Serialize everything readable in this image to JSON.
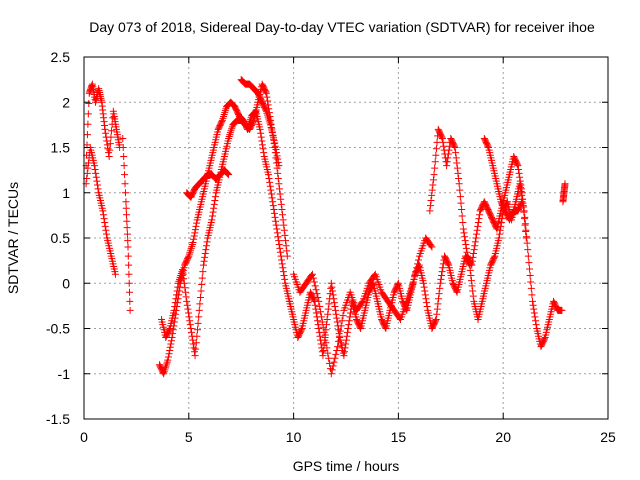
{
  "chart_data": {
    "type": "scatter",
    "title": "Day 073 of 2018, Sidereal Day-to-day VTEC variation (SDTVAR) for receiver ihoe",
    "xlabel": "GPS time / hours",
    "ylabel": "SDTVAR / TECUs",
    "xlim": [
      0,
      25
    ],
    "ylim": [
      -1.5,
      2.5
    ],
    "x_ticks": [
      "0",
      "5",
      "10",
      "15",
      "20",
      "25"
    ],
    "y_ticks": [
      "-1.5",
      "-1",
      "-0.5",
      "0",
      "0.5",
      "1",
      "1.5",
      "2",
      "2.5"
    ],
    "grid": true,
    "marker": "+",
    "marker_color": "#ff0000",
    "series": [
      {
        "name": "SDTVAR",
        "segments": [
          {
            "x": [
              0.1,
              0.25,
              0.4,
              0.55,
              0.7,
              0.85,
              1.0,
              1.2,
              1.4,
              1.55,
              1.7
            ],
            "y": [
              1.3,
              2.1,
              2.2,
              2.0,
              2.15,
              2.0,
              1.7,
              1.4,
              1.9,
              1.7,
              1.5
            ]
          },
          {
            "x": [
              0.1,
              0.3,
              0.5,
              0.7,
              0.9,
              1.1,
              1.3,
              1.5
            ],
            "y": [
              1.1,
              1.5,
              1.3,
              1.0,
              0.8,
              0.5,
              0.3,
              0.1
            ]
          },
          {
            "x": [
              1.85,
              2.0,
              2.1,
              2.2
            ],
            "y": [
              1.6,
              0.9,
              0.4,
              -0.3
            ]
          },
          {
            "x": [
              3.6,
              3.8,
              4.0,
              4.2,
              4.4,
              4.6,
              4.8,
              5.0,
              5.2,
              5.4,
              5.6,
              5.8,
              6.0,
              6.2,
              6.4,
              6.6,
              6.8,
              7.0,
              7.2,
              7.4,
              7.6,
              7.8,
              8.0,
              8.2,
              8.4,
              8.6,
              8.8,
              9.0,
              9.2,
              9.4,
              9.6,
              9.8
            ],
            "y": [
              -0.9,
              -1.0,
              -0.85,
              -0.6,
              -0.3,
              0.0,
              0.2,
              0.3,
              0.45,
              0.7,
              0.9,
              1.1,
              1.3,
              1.5,
              1.7,
              1.8,
              1.95,
              2.0,
              1.95,
              1.85,
              1.8,
              1.7,
              1.85,
              1.9,
              1.7,
              1.4,
              1.2,
              0.9,
              0.6,
              0.3,
              0.0,
              -0.2
            ]
          },
          {
            "x": [
              3.7,
              3.9,
              4.1,
              4.3,
              4.5,
              4.7,
              4.9,
              5.1,
              5.3,
              5.5,
              5.7,
              5.9,
              6.1,
              6.3,
              6.5,
              6.7,
              6.9,
              7.1,
              7.3,
              7.5,
              7.7,
              7.9,
              8.1,
              8.3,
              8.5,
              8.7,
              8.9,
              9.1,
              9.3,
              9.5,
              9.7
            ],
            "y": [
              -0.4,
              -0.6,
              -0.5,
              -0.3,
              0.0,
              0.15,
              -0.2,
              -0.5,
              -0.8,
              -0.3,
              0.2,
              0.5,
              0.7,
              1.0,
              1.2,
              1.4,
              1.6,
              1.75,
              1.8,
              1.8,
              1.75,
              1.7,
              1.8,
              2.0,
              2.2,
              2.1,
              1.8,
              1.5,
              1.1,
              0.7,
              0.3
            ]
          },
          {
            "x": [
              4.9,
              5.1,
              5.3,
              5.5,
              5.7,
              5.9,
              6.1,
              6.3,
              6.5,
              6.7,
              6.9
            ],
            "y": [
              1.0,
              0.95,
              1.05,
              1.1,
              1.15,
              1.2,
              1.2,
              1.15,
              1.2,
              1.25,
              1.2
            ]
          },
          {
            "x": [
              7.5,
              7.7,
              7.9,
              8.1,
              8.3,
              8.5,
              8.7,
              8.9,
              9.1,
              9.3
            ],
            "y": [
              2.25,
              2.2,
              2.2,
              2.15,
              2.1,
              2.0,
              1.9,
              1.75,
              1.55,
              1.3
            ]
          },
          {
            "x": [
              9.8,
              10.0,
              10.2,
              10.4,
              10.6,
              10.8,
              11.0,
              11.2,
              11.4,
              11.6,
              11.8,
              12.0,
              12.2,
              12.4,
              12.6,
              12.8,
              13.0,
              13.2,
              13.4,
              13.6,
              13.8,
              14.0,
              14.2,
              14.4,
              14.6,
              14.8,
              15.0,
              15.2,
              15.4,
              15.6,
              15.8,
              16.0,
              16.2,
              16.4,
              16.6,
              16.8
            ],
            "y": [
              -0.2,
              -0.4,
              -0.6,
              -0.5,
              -0.3,
              -0.1,
              -0.2,
              -0.5,
              -0.8,
              -0.4,
              0.0,
              -0.3,
              -0.6,
              -0.8,
              -0.5,
              -0.2,
              -0.4,
              -0.5,
              -0.3,
              -0.1,
              0.0,
              -0.2,
              -0.4,
              -0.5,
              -0.3,
              -0.1,
              0.0,
              -0.2,
              -0.3,
              -0.1,
              0.1,
              0.2,
              0.0,
              -0.3,
              -0.5,
              -0.4
            ]
          },
          {
            "x": [
              10.0,
              10.3,
              10.6,
              10.9,
              11.2,
              11.5,
              11.8,
              12.1,
              12.4,
              12.7,
              13.0,
              13.3,
              13.6,
              13.9,
              14.2,
              14.5,
              14.8,
              15.1,
              15.4,
              15.7,
              16.0,
              16.3,
              16.6
            ],
            "y": [
              0.1,
              -0.1,
              0.0,
              0.1,
              -0.2,
              -0.6,
              -1.0,
              -0.7,
              -0.3,
              -0.1,
              -0.3,
              -0.2,
              0.0,
              0.1,
              -0.1,
              -0.2,
              -0.3,
              -0.4,
              -0.2,
              0.0,
              0.3,
              0.5,
              0.4
            ]
          },
          {
            "x": [
              16.8,
              17.0,
              17.2,
              17.4,
              17.6,
              17.8,
              18.0,
              18.2,
              18.4,
              18.6,
              18.8,
              19.0,
              19.2,
              19.4,
              19.6,
              19.8,
              20.0,
              20.2,
              20.4,
              20.6,
              20.8,
              21.0,
              21.2,
              21.4,
              21.6,
              21.8,
              22.0,
              22.2,
              22.4,
              22.6,
              22.8
            ],
            "y": [
              -0.4,
              0.0,
              0.3,
              0.2,
              0.0,
              -0.1,
              0.1,
              0.3,
              0.2,
              -0.2,
              -0.4,
              -0.2,
              0.0,
              0.2,
              0.3,
              0.5,
              0.8,
              0.9,
              0.7,
              0.9,
              1.1,
              0.8,
              0.3,
              -0.2,
              -0.5,
              -0.7,
              -0.6,
              -0.4,
              -0.2,
              -0.3,
              -0.3
            ]
          },
          {
            "x": [
              16.5,
              16.7,
              16.9,
              17.1,
              17.3,
              17.5,
              17.7,
              17.9,
              18.1,
              18.3,
              18.5,
              18.7,
              18.9,
              19.1,
              19.3,
              19.5,
              19.7,
              19.9,
              20.1,
              20.3,
              20.5,
              20.7,
              20.9,
              21.1
            ],
            "y": [
              0.8,
              1.2,
              1.7,
              1.6,
              1.3,
              1.6,
              1.5,
              1.1,
              0.6,
              0.3,
              0.2,
              0.5,
              0.8,
              0.9,
              0.8,
              0.7,
              0.6,
              0.8,
              1.0,
              1.2,
              1.4,
              1.3,
              1.0,
              0.5
            ]
          },
          {
            "x": [
              19.1,
              19.3,
              19.5,
              19.7,
              19.9,
              20.1,
              20.3,
              20.5,
              20.7,
              20.9
            ],
            "y": [
              1.6,
              1.5,
              1.3,
              1.1,
              0.9,
              0.8,
              0.7,
              0.8,
              0.8,
              0.9
            ]
          },
          {
            "x": [
              22.85,
              22.9,
              22.95
            ],
            "y": [
              0.9,
              1.0,
              1.1
            ]
          }
        ]
      }
    ]
  }
}
